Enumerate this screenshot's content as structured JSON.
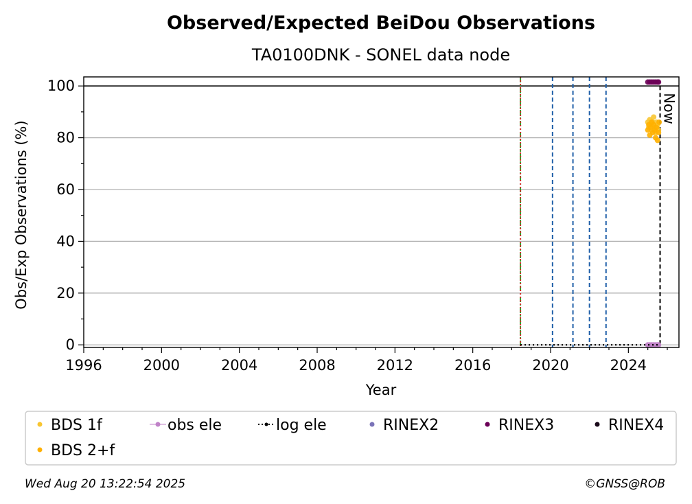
{
  "chart_data": {
    "type": "scatter",
    "title": "Observed/Expected BeiDou Observations",
    "subtitle": "TA0100DNK - SONEL data node",
    "xlabel": "Year",
    "ylabel": "Obs/Exp Observations (%)",
    "xlim": [
      1996,
      2026.6
    ],
    "ylim": [
      -1,
      103.5
    ],
    "x_ticks": [
      1996,
      2000,
      2004,
      2008,
      2012,
      2016,
      2020,
      2024
    ],
    "y_ticks": [
      0,
      20,
      40,
      60,
      80,
      100
    ],
    "grid": "horizontal",
    "reference_line_y": 100,
    "now_label": "Now",
    "now_x": 2025.63,
    "vlines": [
      {
        "x": 2018.45,
        "color": "#2ca02c",
        "style": "dash-dot",
        "role": "green"
      },
      {
        "x": 2018.45,
        "color": "#d62728",
        "style": "dotted",
        "role": "red"
      },
      {
        "x": 2020.1,
        "color": "#1f5fa8",
        "style": "dashed",
        "role": "blue"
      },
      {
        "x": 2021.15,
        "color": "#1f5fa8",
        "style": "dashed",
        "role": "blue"
      },
      {
        "x": 2022.0,
        "color": "#1f5fa8",
        "style": "dashed",
        "role": "blue"
      },
      {
        "x": 2022.85,
        "color": "#1f5fa8",
        "style": "dashed",
        "role": "blue"
      }
    ],
    "series": [
      {
        "name": "BDS 1f",
        "color": "#f8c531",
        "marker": "dot",
        "points": [
          [
            2025.0,
            86
          ],
          [
            2025.05,
            84
          ],
          [
            2025.1,
            87
          ],
          [
            2025.15,
            85
          ],
          [
            2025.2,
            83
          ],
          [
            2025.25,
            86
          ],
          [
            2025.3,
            88
          ],
          [
            2025.35,
            84
          ],
          [
            2025.4,
            82
          ],
          [
            2025.45,
            86
          ],
          [
            2025.5,
            85
          ],
          [
            2025.55,
            83
          ]
        ]
      },
      {
        "name": "BDS 2+f",
        "color": "#ffb000",
        "marker": "dot",
        "points": [
          [
            2025.0,
            83
          ],
          [
            2025.05,
            85
          ],
          [
            2025.1,
            81
          ],
          [
            2025.15,
            84
          ],
          [
            2025.2,
            86
          ],
          [
            2025.25,
            82
          ],
          [
            2025.3,
            85
          ],
          [
            2025.35,
            83
          ],
          [
            2025.4,
            80
          ],
          [
            2025.45,
            84
          ],
          [
            2025.5,
            79
          ],
          [
            2025.55,
            82
          ],
          [
            2025.58,
            86
          ]
        ]
      },
      {
        "name": "obs ele",
        "color": "#c082c8",
        "marker": "dot-line",
        "points": [
          [
            2025.0,
            0
          ],
          [
            2025.1,
            0
          ],
          [
            2025.2,
            0
          ],
          [
            2025.3,
            0
          ],
          [
            2025.4,
            0
          ],
          [
            2025.5,
            0
          ],
          [
            2025.55,
            0
          ]
        ]
      },
      {
        "name": "log ele",
        "color": "#000000",
        "marker": "dotted-line",
        "points": [
          [
            2018.45,
            0
          ],
          [
            2025.63,
            0
          ]
        ]
      },
      {
        "name": "RINEX2",
        "color": "#7a73b8",
        "marker": "dot",
        "points": []
      },
      {
        "name": "RINEX3",
        "color": "#6b0057",
        "marker": "dot",
        "points": [
          [
            2025.0,
            101.5
          ],
          [
            2025.1,
            101.5
          ],
          [
            2025.2,
            101.5
          ],
          [
            2025.3,
            101.5
          ],
          [
            2025.4,
            101.5
          ],
          [
            2025.5,
            101.5
          ],
          [
            2025.55,
            101.5
          ]
        ]
      },
      {
        "name": "RINEX4",
        "color": "#1a0a1a",
        "marker": "dot",
        "points": []
      }
    ]
  },
  "legend": {
    "items": [
      {
        "label": "BDS 1f",
        "color": "#f8c531",
        "kind": "dot"
      },
      {
        "label": "obs ele",
        "color": "#c082c8",
        "kind": "dot-line"
      },
      {
        "label": "log ele",
        "color": "#000000",
        "kind": "dotted-line"
      },
      {
        "label": "RINEX2",
        "color": "#7a73b8",
        "kind": "dot"
      },
      {
        "label": "RINEX3",
        "color": "#6b0057",
        "kind": "dot"
      },
      {
        "label": "RINEX4",
        "color": "#1a0a1a",
        "kind": "dot"
      },
      {
        "label": "BDS 2+f",
        "color": "#ffb000",
        "kind": "dot"
      }
    ]
  },
  "footer": {
    "timestamp": "Wed Aug 20 13:22:54 2025",
    "credit": "©GNSS@ROB"
  }
}
